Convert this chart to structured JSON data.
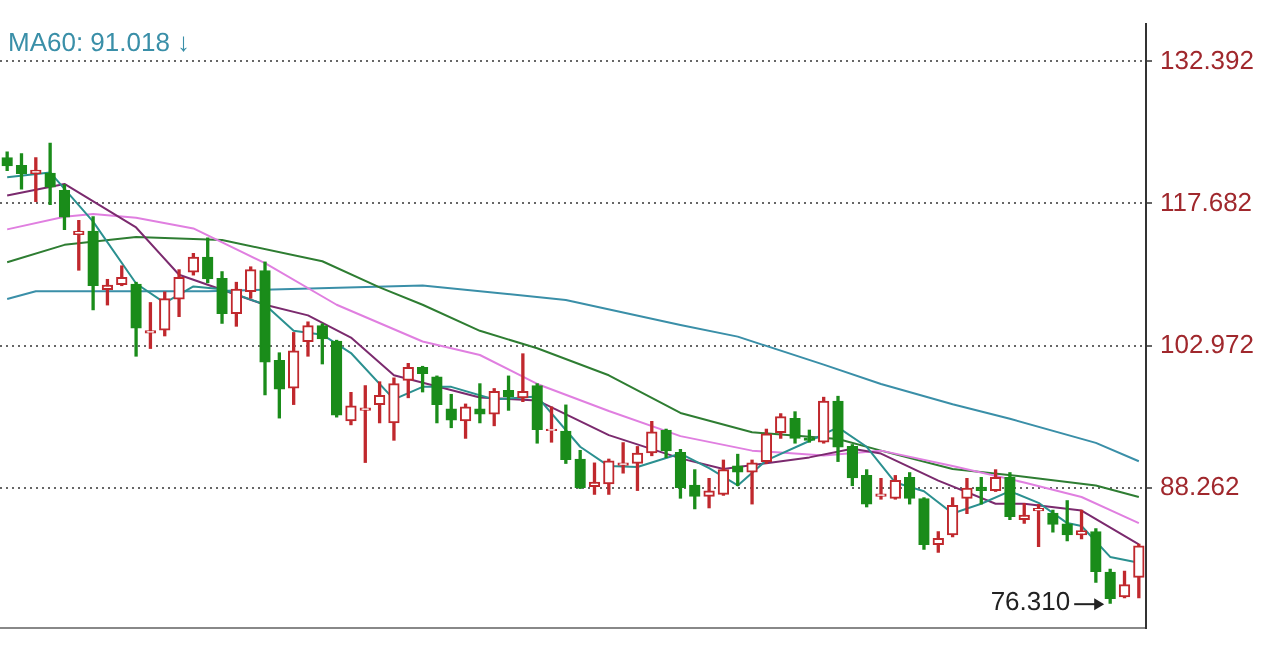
{
  "chart_data": {
    "type": "candlestick",
    "categories": [
      null,
      null,
      null,
      null,
      null,
      null,
      null,
      null,
      null,
      null,
      null,
      null,
      null,
      null,
      null,
      null,
      null,
      null,
      null,
      null,
      null,
      null,
      null,
      null,
      null,
      null,
      null,
      null,
      null,
      null,
      null,
      null,
      null,
      null,
      null,
      null,
      null,
      null,
      null,
      null,
      null,
      null,
      null,
      null,
      null,
      null,
      null,
      null,
      null,
      null,
      null,
      null,
      null,
      null,
      null,
      null,
      null,
      null,
      null,
      null,
      null,
      null,
      null,
      null,
      null,
      null,
      null,
      null,
      null,
      null,
      null,
      null,
      null,
      null,
      null,
      null,
      null,
      null,
      null,
      null
    ],
    "ohlc": [
      [
        122.4,
        123.0,
        121.1,
        121.6
      ],
      [
        121.6,
        122.8,
        119.2,
        120.8
      ],
      [
        120.8,
        122.4,
        117.9,
        121.1
      ],
      [
        120.8,
        123.9,
        117.6,
        119.4
      ],
      [
        119.0,
        119.6,
        115.0,
        116.3
      ],
      [
        114.5,
        115.9,
        110.8,
        114.8
      ],
      [
        114.8,
        116.3,
        106.7,
        109.2
      ],
      [
        108.8,
        109.8,
        107.2,
        109.2
      ],
      [
        109.3,
        111.2,
        109.2,
        110.0
      ],
      [
        109.3,
        109.5,
        101.9,
        104.8
      ],
      [
        104.3,
        107.4,
        102.7,
        104.5
      ],
      [
        104.6,
        108.5,
        104.0,
        107.8
      ],
      [
        107.8,
        110.8,
        106.0,
        110.0
      ],
      [
        110.6,
        112.5,
        110.3,
        112.1
      ],
      [
        112.1,
        114.1,
        109.5,
        109.9
      ],
      [
        109.9,
        110.6,
        105.3,
        106.3
      ],
      [
        106.3,
        109.5,
        105.0,
        108.8
      ],
      [
        108.6,
        111.1,
        107.9,
        110.8
      ],
      [
        110.7,
        111.6,
        97.9,
        101.3
      ],
      [
        101.4,
        102.2,
        95.5,
        98.5
      ],
      [
        98.6,
        104.3,
        96.9,
        102.4
      ],
      [
        103.4,
        105.4,
        101.9,
        105.0
      ],
      [
        105.0,
        105.2,
        101.1,
        103.7
      ],
      [
        103.4,
        103.5,
        95.6,
        95.8
      ],
      [
        95.2,
        98.1,
        94.8,
        96.7
      ],
      [
        96.3,
        98.8,
        90.9,
        96.5
      ],
      [
        96.9,
        99.2,
        95.0,
        97.8
      ],
      [
        95.0,
        99.6,
        93.2,
        99.0
      ],
      [
        99.4,
        101.1,
        97.6,
        100.7
      ],
      [
        100.7,
        100.8,
        98.2,
        100.1
      ],
      [
        99.7,
        99.8,
        95.0,
        96.9
      ],
      [
        96.4,
        97.9,
        94.5,
        95.3
      ],
      [
        95.2,
        96.9,
        93.4,
        96.6
      ],
      [
        96.4,
        99.0,
        95.0,
        95.9
      ],
      [
        95.9,
        98.5,
        94.7,
        98.2
      ],
      [
        98.3,
        99.8,
        96.3,
        97.7
      ],
      [
        97.6,
        102.1,
        97.2,
        98.2
      ],
      [
        98.8,
        99.0,
        92.9,
        94.3
      ],
      [
        94.2,
        96.6,
        93.0,
        94.3
      ],
      [
        94.1,
        96.8,
        90.8,
        91.2
      ],
      [
        91.2,
        92.1,
        88.2,
        88.3
      ],
      [
        88.4,
        90.8,
        87.6,
        88.8
      ],
      [
        88.7,
        91.2,
        87.6,
        91.0
      ],
      [
        90.6,
        92.9,
        89.8,
        90.8
      ],
      [
        90.8,
        92.5,
        88.0,
        91.8
      ],
      [
        91.9,
        95.1,
        91.6,
        94.0
      ],
      [
        94.2,
        94.3,
        91.4,
        92.1
      ],
      [
        91.9,
        92.2,
        87.2,
        88.3
      ],
      [
        88.5,
        90.1,
        86.1,
        87.4
      ],
      [
        87.4,
        89.2,
        86.2,
        87.9
      ],
      [
        87.6,
        91.1,
        87.5,
        90.1
      ],
      [
        90.5,
        91.7,
        88.5,
        89.9
      ],
      [
        89.9,
        91.1,
        86.6,
        90.8
      ],
      [
        91.0,
        94.3,
        90.8,
        93.8
      ],
      [
        94.0,
        95.9,
        93.4,
        95.6
      ],
      [
        95.4,
        96.1,
        92.9,
        93.4
      ],
      [
        93.4,
        94.2,
        93.0,
        93.2
      ],
      [
        93.0,
        97.6,
        92.9,
        97.2
      ],
      [
        97.2,
        97.7,
        91.0,
        92.5
      ],
      [
        92.5,
        92.7,
        88.5,
        89.3
      ],
      [
        89.5,
        90.1,
        86.3,
        86.6
      ],
      [
        87.4,
        89.2,
        87.1,
        87.6
      ],
      [
        87.2,
        89.5,
        87.1,
        89.0
      ],
      [
        89.3,
        89.8,
        86.6,
        87.2
      ],
      [
        87.1,
        87.2,
        81.9,
        82.4
      ],
      [
        82.4,
        83.7,
        81.6,
        83.0
      ],
      [
        83.4,
        87.2,
        83.2,
        86.4
      ],
      [
        87.2,
        89.2,
        85.6,
        88.2
      ],
      [
        88.3,
        89.3,
        86.6,
        88.0
      ],
      [
        88.0,
        90.1,
        87.9,
        89.3
      ],
      [
        89.3,
        89.8,
        85.0,
        85.3
      ],
      [
        85.0,
        86.6,
        84.6,
        85.4
      ],
      [
        85.9,
        86.5,
        82.2,
        86.1
      ],
      [
        85.6,
        85.9,
        83.7,
        84.5
      ],
      [
        84.5,
        86.9,
        82.8,
        83.4
      ],
      [
        83.4,
        85.9,
        83.0,
        83.8
      ],
      [
        83.7,
        84.0,
        78.5,
        79.6
      ],
      [
        79.5,
        79.8,
        76.31,
        76.8
      ],
      [
        77.0,
        79.6,
        76.9,
        78.2
      ],
      [
        79.0,
        82.4,
        76.9,
        82.2
      ]
    ],
    "colors": [
      "#1a8c1a",
      "#1a8c1a",
      "#c0282d",
      "#1a8c1a",
      "#1a8c1a",
      "#c0282d",
      "#1a8c1a",
      "#c0282d",
      "#c0282d",
      "#1a8c1a",
      "#c0282d",
      "#c0282d",
      "#c0282d",
      "#c0282d",
      "#1a8c1a",
      "#1a8c1a",
      "#c0282d",
      "#c0282d",
      "#1a8c1a",
      "#1a8c1a",
      "#c0282d",
      "#c0282d",
      "#1a8c1a",
      "#1a8c1a",
      "#c0282d",
      "#c0282d",
      "#c0282d",
      "#c0282d",
      "#c0282d",
      "#1a8c1a",
      "#1a8c1a",
      "#1a8c1a",
      "#c0282d",
      "#1a8c1a",
      "#c0282d",
      "#1a8c1a",
      "#c0282d",
      "#1a8c1a",
      "#c0282d",
      "#1a8c1a",
      "#1a8c1a",
      "#c0282d",
      "#c0282d",
      "#c0282d",
      "#c0282d",
      "#c0282d",
      "#1a8c1a",
      "#1a8c1a",
      "#1a8c1a",
      "#c0282d",
      "#c0282d",
      "#1a8c1a",
      "#c0282d",
      "#c0282d",
      "#c0282d",
      "#1a8c1a",
      "#1a8c1a",
      "#c0282d",
      "#1a8c1a",
      "#1a8c1a",
      "#1a8c1a",
      "#c0282d",
      "#c0282d",
      "#1a8c1a",
      "#1a8c1a",
      "#c0282d",
      "#c0282d",
      "#c0282d",
      "#1a8c1a",
      "#c0282d",
      "#1a8c1a",
      "#c0282d",
      "#c0282d",
      "#1a8c1a",
      "#1a8c1a",
      "#c0282d",
      "#1a8c1a",
      "#1a8c1a",
      "#c0282d",
      "#c0282d"
    ],
    "series": [
      {
        "type": "line",
        "color": "#2b9090",
        "values": [
          120.4,
          null,
          null,
          120.9,
          119.2,
          null,
          115.8,
          null,
          null,
          109.4,
          null,
          107.4,
          null,
          109.1,
          null,
          108.8,
          null,
          null,
          107.2,
          null,
          104.5,
          null,
          104.1,
          null,
          102.2,
          null,
          null,
          97.4,
          null,
          98.7,
          null,
          98.7,
          null,
          null,
          97.4,
          null,
          null,
          97.7,
          null,
          null,
          92.5,
          null,
          90.5,
          null,
          90.4,
          null,
          null,
          91.8,
          null,
          90.3,
          null,
          88.5,
          null,
          91.1,
          null,
          null,
          93.1,
          null,
          94.5,
          null,
          92.5,
          null,
          88.8,
          null,
          87.9,
          null,
          85.6,
          null,
          86.6,
          null,
          87.9,
          null,
          86.7,
          null,
          84.6,
          84.3,
          null,
          81.1,
          null,
          80.5
        ]
      },
      {
        "type": "line",
        "color": "#7b2a6e",
        "values": [
          118.5,
          null,
          null,
          null,
          119.7,
          null,
          null,
          null,
          null,
          115.2,
          null,
          null,
          110.3,
          null,
          null,
          null,
          null,
          null,
          107.2,
          null,
          null,
          106.1,
          null,
          null,
          103.8,
          null,
          null,
          99.9,
          null,
          null,
          null,
          null,
          null,
          97.6,
          null,
          null,
          null,
          97.3,
          null,
          null,
          null,
          null,
          93.7,
          null,
          null,
          null,
          null,
          91.3,
          null,
          null,
          90.2,
          null,
          null,
          90.8,
          null,
          null,
          91.4,
          null,
          null,
          92.3,
          null,
          91.8,
          null,
          null,
          null,
          89.0,
          null,
          null,
          null,
          86.6,
          null,
          86.6,
          null,
          null,
          null,
          85.9,
          null,
          null,
          null,
          82.4
        ]
      },
      {
        "type": "line",
        "color": "#e07fe0",
        "values": [
          115.0,
          null,
          null,
          null,
          116.3,
          null,
          116.6,
          null,
          null,
          116.2,
          null,
          null,
          null,
          115.1,
          null,
          null,
          null,
          null,
          111.5,
          null,
          null,
          null,
          null,
          107.2,
          null,
          null,
          null,
          null,
          null,
          103.4,
          null,
          null,
          null,
          102.0,
          null,
          null,
          null,
          99.0,
          null,
          null,
          null,
          null,
          96.2,
          null,
          null,
          null,
          null,
          93.6,
          null,
          null,
          null,
          null,
          92.1,
          null,
          null,
          null,
          null,
          91.6,
          null,
          null,
          null,
          92.1,
          null,
          null,
          null,
          null,
          90.5,
          null,
          null,
          null,
          null,
          88.8,
          null,
          null,
          null,
          87.3,
          null,
          null,
          null,
          84.6
        ]
      },
      {
        "type": "line",
        "color": "#2e7d32",
        "values": [
          111.6,
          null,
          null,
          null,
          113.4,
          null,
          null,
          null,
          null,
          114.2,
          null,
          null,
          null,
          null,
          null,
          113.9,
          null,
          null,
          null,
          null,
          null,
          null,
          111.7,
          null,
          null,
          null,
          109.0,
          null,
          null,
          107.2,
          null,
          null,
          null,
          104.5,
          null,
          null,
          null,
          102.7,
          null,
          null,
          null,
          null,
          99.9,
          null,
          null,
          null,
          null,
          96.0,
          null,
          null,
          null,
          null,
          94.0,
          null,
          null,
          null,
          null,
          null,
          93.3,
          null,
          null,
          92.1,
          null,
          null,
          null,
          null,
          90.2,
          null,
          null,
          null,
          null,
          89.4,
          null,
          null,
          null,
          null,
          88.5,
          null,
          null,
          87.3
        ]
      },
      {
        "type": "line",
        "color": "#3a8fa8",
        "values": [
          107.8,
          null,
          108.6,
          null,
          null,
          null,
          null,
          null,
          null,
          null,
          null,
          null,
          null,
          null,
          108.6,
          null,
          null,
          null,
          null,
          null,
          null,
          null,
          null,
          null,
          null,
          null,
          null,
          null,
          null,
          109.2,
          null,
          null,
          null,
          null,
          null,
          null,
          null,
          null,
          null,
          107.7,
          null,
          null,
          null,
          null,
          null,
          null,
          null,
          105.1,
          null,
          null,
          null,
          103.9,
          null,
          null,
          null,
          null,
          null,
          101.0,
          null,
          null,
          null,
          99.0,
          null,
          null,
          null,
          null,
          96.9,
          null,
          null,
          null,
          95.4,
          null,
          null,
          null,
          null,
          null,
          92.9,
          null,
          null,
          91.0
        ]
      }
    ],
    "ylim": [
      73.7,
      136.3
    ],
    "yticks": [
      132.392,
      117.682,
      102.972,
      88.262
    ],
    "grid": "y",
    "tick_labels": "y",
    "annotations": [
      "MA60: 91.018 ↓",
      "76.310"
    ]
  }
}
